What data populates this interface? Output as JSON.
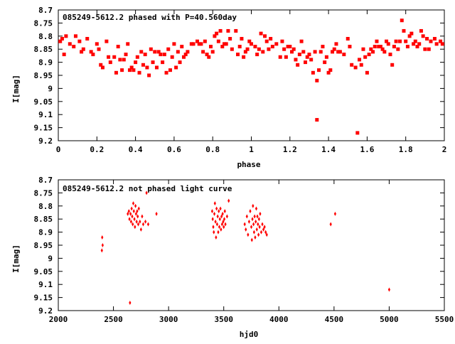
{
  "colors": {
    "marker": "#ff0000",
    "axis": "#000000",
    "background": "#ffffff"
  },
  "chart_data": [
    {
      "type": "scatter",
      "title": "085249-5612.2 phased with P=40.560day",
      "xlabel": "phase",
      "ylabel": "I[mag]",
      "xlim": [
        0,
        2
      ],
      "ylim": [
        8.7,
        9.2
      ],
      "y_inverted": true,
      "grid": false,
      "x_ticks": [
        "0",
        "0.2",
        "0.4",
        "0.6",
        "0.8",
        "1",
        "1.2",
        "1.4",
        "1.6",
        "1.8",
        "2"
      ],
      "y_ticks": [
        "8.7",
        "8.75",
        "8.8",
        "8.85",
        "8.9",
        "8.95",
        "9",
        "9.05",
        "9.1",
        "9.15",
        "9.2"
      ],
      "series": [
        {
          "points": [
            [
              0.01,
              8.82
            ],
            [
              0.02,
              8.81
            ],
            [
              0.03,
              8.87
            ],
            [
              0.04,
              8.8
            ],
            [
              0.06,
              8.83
            ],
            [
              0.08,
              8.84
            ],
            [
              0.09,
              8.8
            ],
            [
              0.11,
              8.82
            ],
            [
              0.12,
              8.86
            ],
            [
              0.13,
              8.85
            ],
            [
              0.15,
              8.81
            ],
            [
              0.17,
              8.86
            ],
            [
              0.18,
              8.87
            ],
            [
              0.2,
              8.83
            ],
            [
              0.21,
              8.85
            ],
            [
              0.22,
              8.91
            ],
            [
              0.23,
              8.92
            ],
            [
              0.25,
              8.82
            ],
            [
              0.26,
              8.88
            ],
            [
              0.27,
              8.9
            ],
            [
              0.29,
              8.88
            ],
            [
              0.3,
              8.94
            ],
            [
              0.31,
              8.84
            ],
            [
              0.32,
              8.89
            ],
            [
              0.33,
              8.93
            ],
            [
              0.34,
              8.89
            ],
            [
              0.35,
              8.87
            ],
            [
              0.36,
              8.83
            ],
            [
              0.37,
              8.93
            ],
            [
              0.38,
              8.92
            ],
            [
              0.39,
              8.93
            ],
            [
              0.4,
              8.9
            ],
            [
              0.41,
              8.88
            ],
            [
              0.42,
              8.94
            ],
            [
              0.43,
              8.86
            ],
            [
              0.44,
              8.91
            ],
            [
              0.45,
              8.87
            ],
            [
              0.46,
              8.92
            ],
            [
              0.47,
              8.95
            ],
            [
              0.48,
              8.85
            ],
            [
              0.49,
              8.9
            ],
            [
              0.5,
              8.86
            ],
            [
              0.51,
              8.92
            ],
            [
              0.52,
              8.86
            ],
            [
              0.53,
              8.87
            ],
            [
              0.54,
              8.9
            ],
            [
              0.55,
              8.87
            ],
            [
              0.56,
              8.94
            ],
            [
              0.57,
              8.85
            ],
            [
              0.58,
              8.93
            ],
            [
              0.59,
              8.88
            ],
            [
              0.6,
              8.83
            ],
            [
              0.61,
              8.92
            ],
            [
              0.62,
              8.86
            ],
            [
              0.63,
              8.9
            ],
            [
              0.64,
              8.84
            ],
            [
              0.65,
              8.88
            ],
            [
              0.66,
              8.87
            ],
            [
              0.67,
              8.86
            ],
            [
              0.69,
              8.83
            ],
            [
              0.7,
              8.83
            ],
            [
              0.72,
              8.82
            ],
            [
              0.73,
              8.83
            ],
            [
              0.74,
              8.83
            ],
            [
              0.75,
              8.86
            ],
            [
              0.76,
              8.82
            ],
            [
              0.77,
              8.87
            ],
            [
              0.78,
              8.88
            ],
            [
              0.79,
              8.84
            ],
            [
              0.8,
              8.86
            ],
            [
              0.81,
              8.8
            ],
            [
              0.82,
              8.79
            ],
            [
              0.83,
              8.82
            ],
            [
              0.84,
              8.78
            ],
            [
              0.85,
              8.84
            ],
            [
              0.86,
              8.83
            ],
            [
              0.87,
              8.83
            ],
            [
              0.88,
              8.78
            ],
            [
              0.89,
              8.81
            ],
            [
              0.9,
              8.85
            ],
            [
              0.92,
              8.78
            ],
            [
              0.93,
              8.87
            ],
            [
              0.94,
              8.84
            ],
            [
              0.95,
              8.81
            ],
            [
              0.96,
              8.88
            ],
            [
              0.97,
              8.86
            ],
            [
              0.98,
              8.85
            ],
            [
              0.99,
              8.82
            ],
            [
              1.0,
              8.83
            ],
            [
              1.02,
              8.84
            ],
            [
              1.03,
              8.87
            ],
            [
              1.04,
              8.85
            ],
            [
              1.05,
              8.79
            ],
            [
              1.06,
              8.86
            ],
            [
              1.07,
              8.8
            ],
            [
              1.08,
              8.82
            ],
            [
              1.09,
              8.85
            ],
            [
              1.1,
              8.81
            ],
            [
              1.11,
              8.84
            ],
            [
              1.13,
              8.83
            ],
            [
              1.15,
              8.88
            ],
            [
              1.16,
              8.82
            ],
            [
              1.17,
              8.85
            ],
            [
              1.18,
              8.88
            ],
            [
              1.19,
              8.84
            ],
            [
              1.2,
              8.84
            ],
            [
              1.21,
              8.86
            ],
            [
              1.22,
              8.85
            ],
            [
              1.23,
              8.89
            ],
            [
              1.24,
              8.91
            ],
            [
              1.25,
              8.87
            ],
            [
              1.26,
              8.82
            ],
            [
              1.27,
              8.86
            ],
            [
              1.28,
              8.9
            ],
            [
              1.29,
              8.88
            ],
            [
              1.3,
              8.87
            ],
            [
              1.31,
              8.89
            ],
            [
              1.32,
              8.94
            ],
            [
              1.33,
              8.86
            ],
            [
              1.34,
              8.97
            ],
            [
              1.34,
              9.12
            ],
            [
              1.35,
              8.93
            ],
            [
              1.36,
              8.86
            ],
            [
              1.37,
              8.84
            ],
            [
              1.38,
              8.9
            ],
            [
              1.39,
              8.88
            ],
            [
              1.4,
              8.94
            ],
            [
              1.41,
              8.93
            ],
            [
              1.42,
              8.86
            ],
            [
              1.43,
              8.85
            ],
            [
              1.44,
              8.83
            ],
            [
              1.45,
              8.86
            ],
            [
              1.46,
              8.86
            ],
            [
              1.48,
              8.87
            ],
            [
              1.5,
              8.81
            ],
            [
              1.51,
              8.84
            ],
            [
              1.52,
              8.91
            ],
            [
              1.54,
              8.92
            ],
            [
              1.55,
              9.17
            ],
            [
              1.56,
              8.89
            ],
            [
              1.57,
              8.91
            ],
            [
              1.58,
              8.85
            ],
            [
              1.59,
              8.88
            ],
            [
              1.6,
              8.94
            ],
            [
              1.61,
              8.87
            ],
            [
              1.62,
              8.85
            ],
            [
              1.63,
              8.86
            ],
            [
              1.64,
              8.84
            ],
            [
              1.65,
              8.82
            ],
            [
              1.66,
              8.84
            ],
            [
              1.67,
              8.84
            ],
            [
              1.68,
              8.85
            ],
            [
              1.69,
              8.86
            ],
            [
              1.7,
              8.82
            ],
            [
              1.71,
              8.83
            ],
            [
              1.72,
              8.87
            ],
            [
              1.73,
              8.91
            ],
            [
              1.74,
              8.84
            ],
            [
              1.75,
              8.82
            ],
            [
              1.76,
              8.85
            ],
            [
              1.77,
              8.82
            ],
            [
              1.78,
              8.74
            ],
            [
              1.79,
              8.78
            ],
            [
              1.8,
              8.82
            ],
            [
              1.81,
              8.84
            ],
            [
              1.82,
              8.8
            ],
            [
              1.83,
              8.79
            ],
            [
              1.84,
              8.83
            ],
            [
              1.85,
              8.82
            ],
            [
              1.86,
              8.84
            ],
            [
              1.87,
              8.83
            ],
            [
              1.88,
              8.78
            ],
            [
              1.89,
              8.8
            ],
            [
              1.9,
              8.85
            ],
            [
              1.91,
              8.81
            ],
            [
              1.92,
              8.85
            ],
            [
              1.93,
              8.82
            ],
            [
              1.95,
              8.81
            ],
            [
              1.96,
              8.83
            ],
            [
              1.98,
              8.82
            ],
            [
              1.99,
              8.83
            ]
          ]
        }
      ]
    },
    {
      "type": "scatter",
      "title": "085249-5612.2 not phased light curve",
      "xlabel": "hjd0",
      "ylabel": "I[mag]",
      "xlim": [
        2000,
        5500
      ],
      "ylim": [
        8.7,
        9.2
      ],
      "y_inverted": true,
      "grid": false,
      "x_ticks": [
        "2000",
        "2500",
        "3000",
        "3500",
        "4000",
        "4500",
        "5000",
        "5500"
      ],
      "y_ticks": [
        "8.7",
        "8.75",
        "8.8",
        "8.85",
        "8.9",
        "8.95",
        "9",
        "9.05",
        "9.1",
        "9.15",
        "9.2"
      ],
      "series": [
        {
          "points": [
            [
              2395,
              8.97
            ],
            [
              2398,
              8.92
            ],
            [
              2402,
              8.95
            ],
            [
              2630,
              8.83
            ],
            [
              2640,
              8.82
            ],
            [
              2645,
              8.85
            ],
            [
              2650,
              9.17
            ],
            [
              2655,
              8.83
            ],
            [
              2660,
              8.86
            ],
            [
              2665,
              8.81
            ],
            [
              2670,
              8.84
            ],
            [
              2675,
              8.87
            ],
            [
              2680,
              8.79
            ],
            [
              2685,
              8.82
            ],
            [
              2690,
              8.85
            ],
            [
              2695,
              8.88
            ],
            [
              2700,
              8.8
            ],
            [
              2705,
              8.83
            ],
            [
              2710,
              8.86
            ],
            [
              2715,
              8.82
            ],
            [
              2720,
              8.84
            ],
            [
              2725,
              8.87
            ],
            [
              2730,
              8.81
            ],
            [
              2740,
              8.86
            ],
            [
              2750,
              8.89
            ],
            [
              2760,
              8.84
            ],
            [
              2770,
              8.87
            ],
            [
              2790,
              8.86
            ],
            [
              2800,
              8.75
            ],
            [
              2815,
              8.87
            ],
            [
              2890,
              8.83
            ],
            [
              3395,
              8.82
            ],
            [
              3400,
              8.85
            ],
            [
              3405,
              8.88
            ],
            [
              3410,
              8.9
            ],
            [
              3415,
              8.83
            ],
            [
              3420,
              8.79
            ],
            [
              3425,
              8.86
            ],
            [
              3430,
              8.92
            ],
            [
              3435,
              8.81
            ],
            [
              3440,
              8.87
            ],
            [
              3445,
              8.84
            ],
            [
              3450,
              8.9
            ],
            [
              3455,
              8.82
            ],
            [
              3460,
              8.88
            ],
            [
              3465,
              8.85
            ],
            [
              3470,
              8.81
            ],
            [
              3475,
              8.89
            ],
            [
              3480,
              8.84
            ],
            [
              3485,
              8.87
            ],
            [
              3490,
              8.83
            ],
            [
              3495,
              8.86
            ],
            [
              3500,
              8.88
            ],
            [
              3505,
              8.85
            ],
            [
              3510,
              8.82
            ],
            [
              3515,
              8.87
            ],
            [
              3530,
              8.84
            ],
            [
              3545,
              8.78
            ],
            [
              3690,
              8.87
            ],
            [
              3700,
              8.89
            ],
            [
              3710,
              8.84
            ],
            [
              3720,
              8.91
            ],
            [
              3730,
              8.86
            ],
            [
              3740,
              8.82
            ],
            [
              3750,
              8.88
            ],
            [
              3755,
              8.93
            ],
            [
              3760,
              8.85
            ],
            [
              3765,
              8.8
            ],
            [
              3770,
              8.87
            ],
            [
              3775,
              8.9
            ],
            [
              3780,
              8.84
            ],
            [
              3785,
              8.92
            ],
            [
              3790,
              8.86
            ],
            [
              3795,
              8.81
            ],
            [
              3800,
              8.89
            ],
            [
              3805,
              8.84
            ],
            [
              3810,
              8.87
            ],
            [
              3815,
              8.91
            ],
            [
              3820,
              8.85
            ],
            [
              3825,
              8.88
            ],
            [
              3830,
              8.83
            ],
            [
              3840,
              8.9
            ],
            [
              3850,
              8.87
            ],
            [
              3860,
              8.89
            ],
            [
              3870,
              8.88
            ],
            [
              3880,
              8.9
            ],
            [
              3890,
              8.91
            ],
            [
              4470,
              8.87
            ],
            [
              4510,
              8.83
            ],
            [
              5000,
              9.12
            ]
          ]
        }
      ]
    }
  ]
}
